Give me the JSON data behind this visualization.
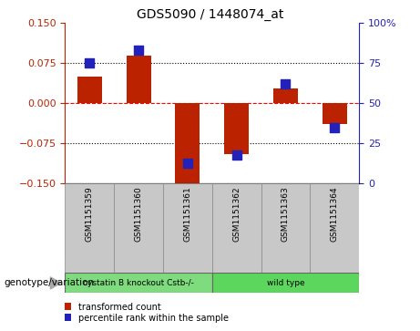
{
  "title": "GDS5090 / 1448074_at",
  "samples": [
    "GSM1151359",
    "GSM1151360",
    "GSM1151361",
    "GSM1151362",
    "GSM1151363",
    "GSM1151364"
  ],
  "transformed_count": [
    0.05,
    0.09,
    -0.155,
    -0.095,
    0.028,
    -0.038
  ],
  "percentile_rank": [
    75,
    83,
    13,
    18,
    62,
    35
  ],
  "ylim_left": [
    -0.15,
    0.15
  ],
  "ylim_right": [
    0,
    100
  ],
  "yticks_left": [
    -0.15,
    -0.075,
    0,
    0.075,
    0.15
  ],
  "yticks_right": [
    0,
    25,
    50,
    75,
    100
  ],
  "ytick_right_labels": [
    "0",
    "25",
    "50",
    "75",
    "100%"
  ],
  "hline_dotted": [
    0.075,
    -0.075
  ],
  "hline_dashed": 0,
  "bar_color": "#BB2200",
  "dot_color": "#2222BB",
  "bar_width": 0.5,
  "dot_size": 45,
  "genotype_label": "genotype/variation",
  "group1_label": "cystatin B knockout Cstb-/-",
  "group2_label": "wild type",
  "group1_color": "#7EDB7E",
  "group2_color": "#5CD65C",
  "sample_bg_color": "#C8C8C8",
  "legend_red": "transformed count",
  "legend_blue": "percentile rank within the sample"
}
